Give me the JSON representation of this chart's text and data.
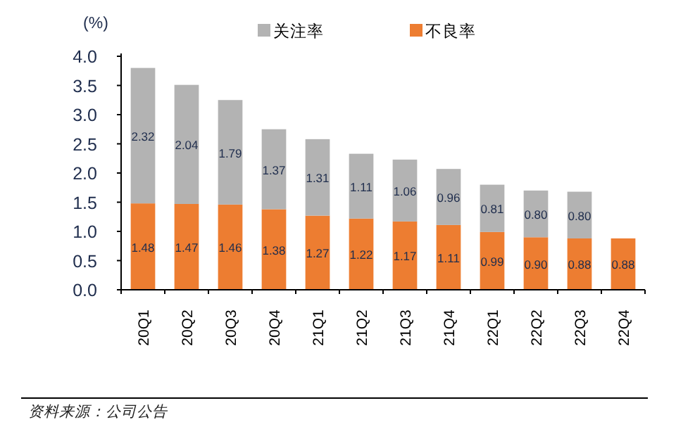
{
  "chart_data": {
    "type": "bar",
    "stacked": true,
    "ylabel": "(%)",
    "categories": [
      "20Q1",
      "20Q2",
      "20Q3",
      "20Q4",
      "21Q1",
      "21Q2",
      "21Q3",
      "21Q4",
      "22Q1",
      "22Q2",
      "22Q3",
      "22Q4"
    ],
    "series": [
      {
        "name": "不良率",
        "color": "#ed7d31",
        "values": [
          1.48,
          1.47,
          1.46,
          1.38,
          1.27,
          1.22,
          1.17,
          1.11,
          0.99,
          0.9,
          0.88,
          0.88
        ],
        "value_labels": [
          "1.48",
          "1.47",
          "1.46",
          "1.38",
          "1.27",
          "1.22",
          "1.17",
          "1.11",
          "0.99",
          "0.90",
          "0.88",
          "0.88"
        ]
      },
      {
        "name": "关注率",
        "color": "#b3b3b3",
        "values": [
          2.32,
          2.04,
          1.79,
          1.37,
          1.31,
          1.11,
          1.06,
          0.96,
          0.81,
          0.8,
          0.8,
          null
        ],
        "value_labels": [
          "2.32",
          "2.04",
          "1.79",
          "1.37",
          "1.31",
          "1.11",
          "1.06",
          "0.96",
          "0.81",
          "0.80",
          "0.80",
          null
        ]
      }
    ],
    "ylim": [
      0,
      4
    ],
    "yticks": [
      "0.0",
      "0.5",
      "1.0",
      "1.5",
      "2.0",
      "2.5",
      "3.0",
      "3.5",
      "4.0"
    ],
    "legend": "top",
    "grid": false,
    "annotations": [
      "资料来源：公司公告"
    ]
  }
}
